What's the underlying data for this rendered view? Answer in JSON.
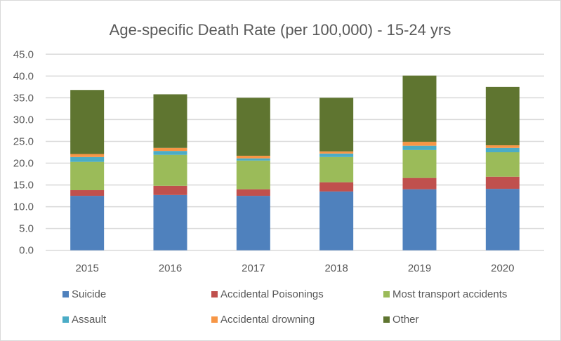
{
  "chart_data": {
    "type": "bar",
    "stacked": true,
    "title": "Age-specific Death Rate (per 100,000) - 15-24 yrs",
    "xlabel": "",
    "ylabel": "",
    "ylim": [
      0,
      45
    ],
    "ytick_step": 5,
    "yticks": [
      "0.0",
      "5.0",
      "10.0",
      "15.0",
      "20.0",
      "25.0",
      "30.0",
      "35.0",
      "40.0",
      "45.0"
    ],
    "grid": true,
    "legend_position": "bottom",
    "categories": [
      "2015",
      "2016",
      "2017",
      "2018",
      "2019",
      "2020"
    ],
    "series": [
      {
        "name": "Suicide",
        "color": "#4f81bd",
        "values": [
          12.5,
          12.7,
          12.5,
          13.5,
          14.0,
          14.1
        ]
      },
      {
        "name": "Accidental Poisonings",
        "color": "#c0504d",
        "values": [
          1.3,
          2.1,
          1.5,
          2.1,
          2.6,
          2.8
        ]
      },
      {
        "name": "Most transport accidents",
        "color": "#9bbb59",
        "values": [
          6.5,
          7.1,
          6.6,
          5.8,
          6.4,
          5.6
        ]
      },
      {
        "name": "Assault",
        "color": "#4bacc6",
        "values": [
          1.1,
          0.9,
          0.5,
          0.8,
          1.0,
          1.0
        ]
      },
      {
        "name": "Accidental drowning",
        "color": "#f79646",
        "values": [
          0.7,
          0.7,
          0.6,
          0.5,
          0.9,
          0.6
        ]
      },
      {
        "name": "Other",
        "color": "#5f7530",
        "values": [
          14.7,
          12.3,
          13.3,
          12.3,
          15.2,
          13.4
        ]
      }
    ]
  },
  "colors": {
    "gridline": "#d9d9d9",
    "text": "#595959",
    "border": "#d9d9d9"
  }
}
